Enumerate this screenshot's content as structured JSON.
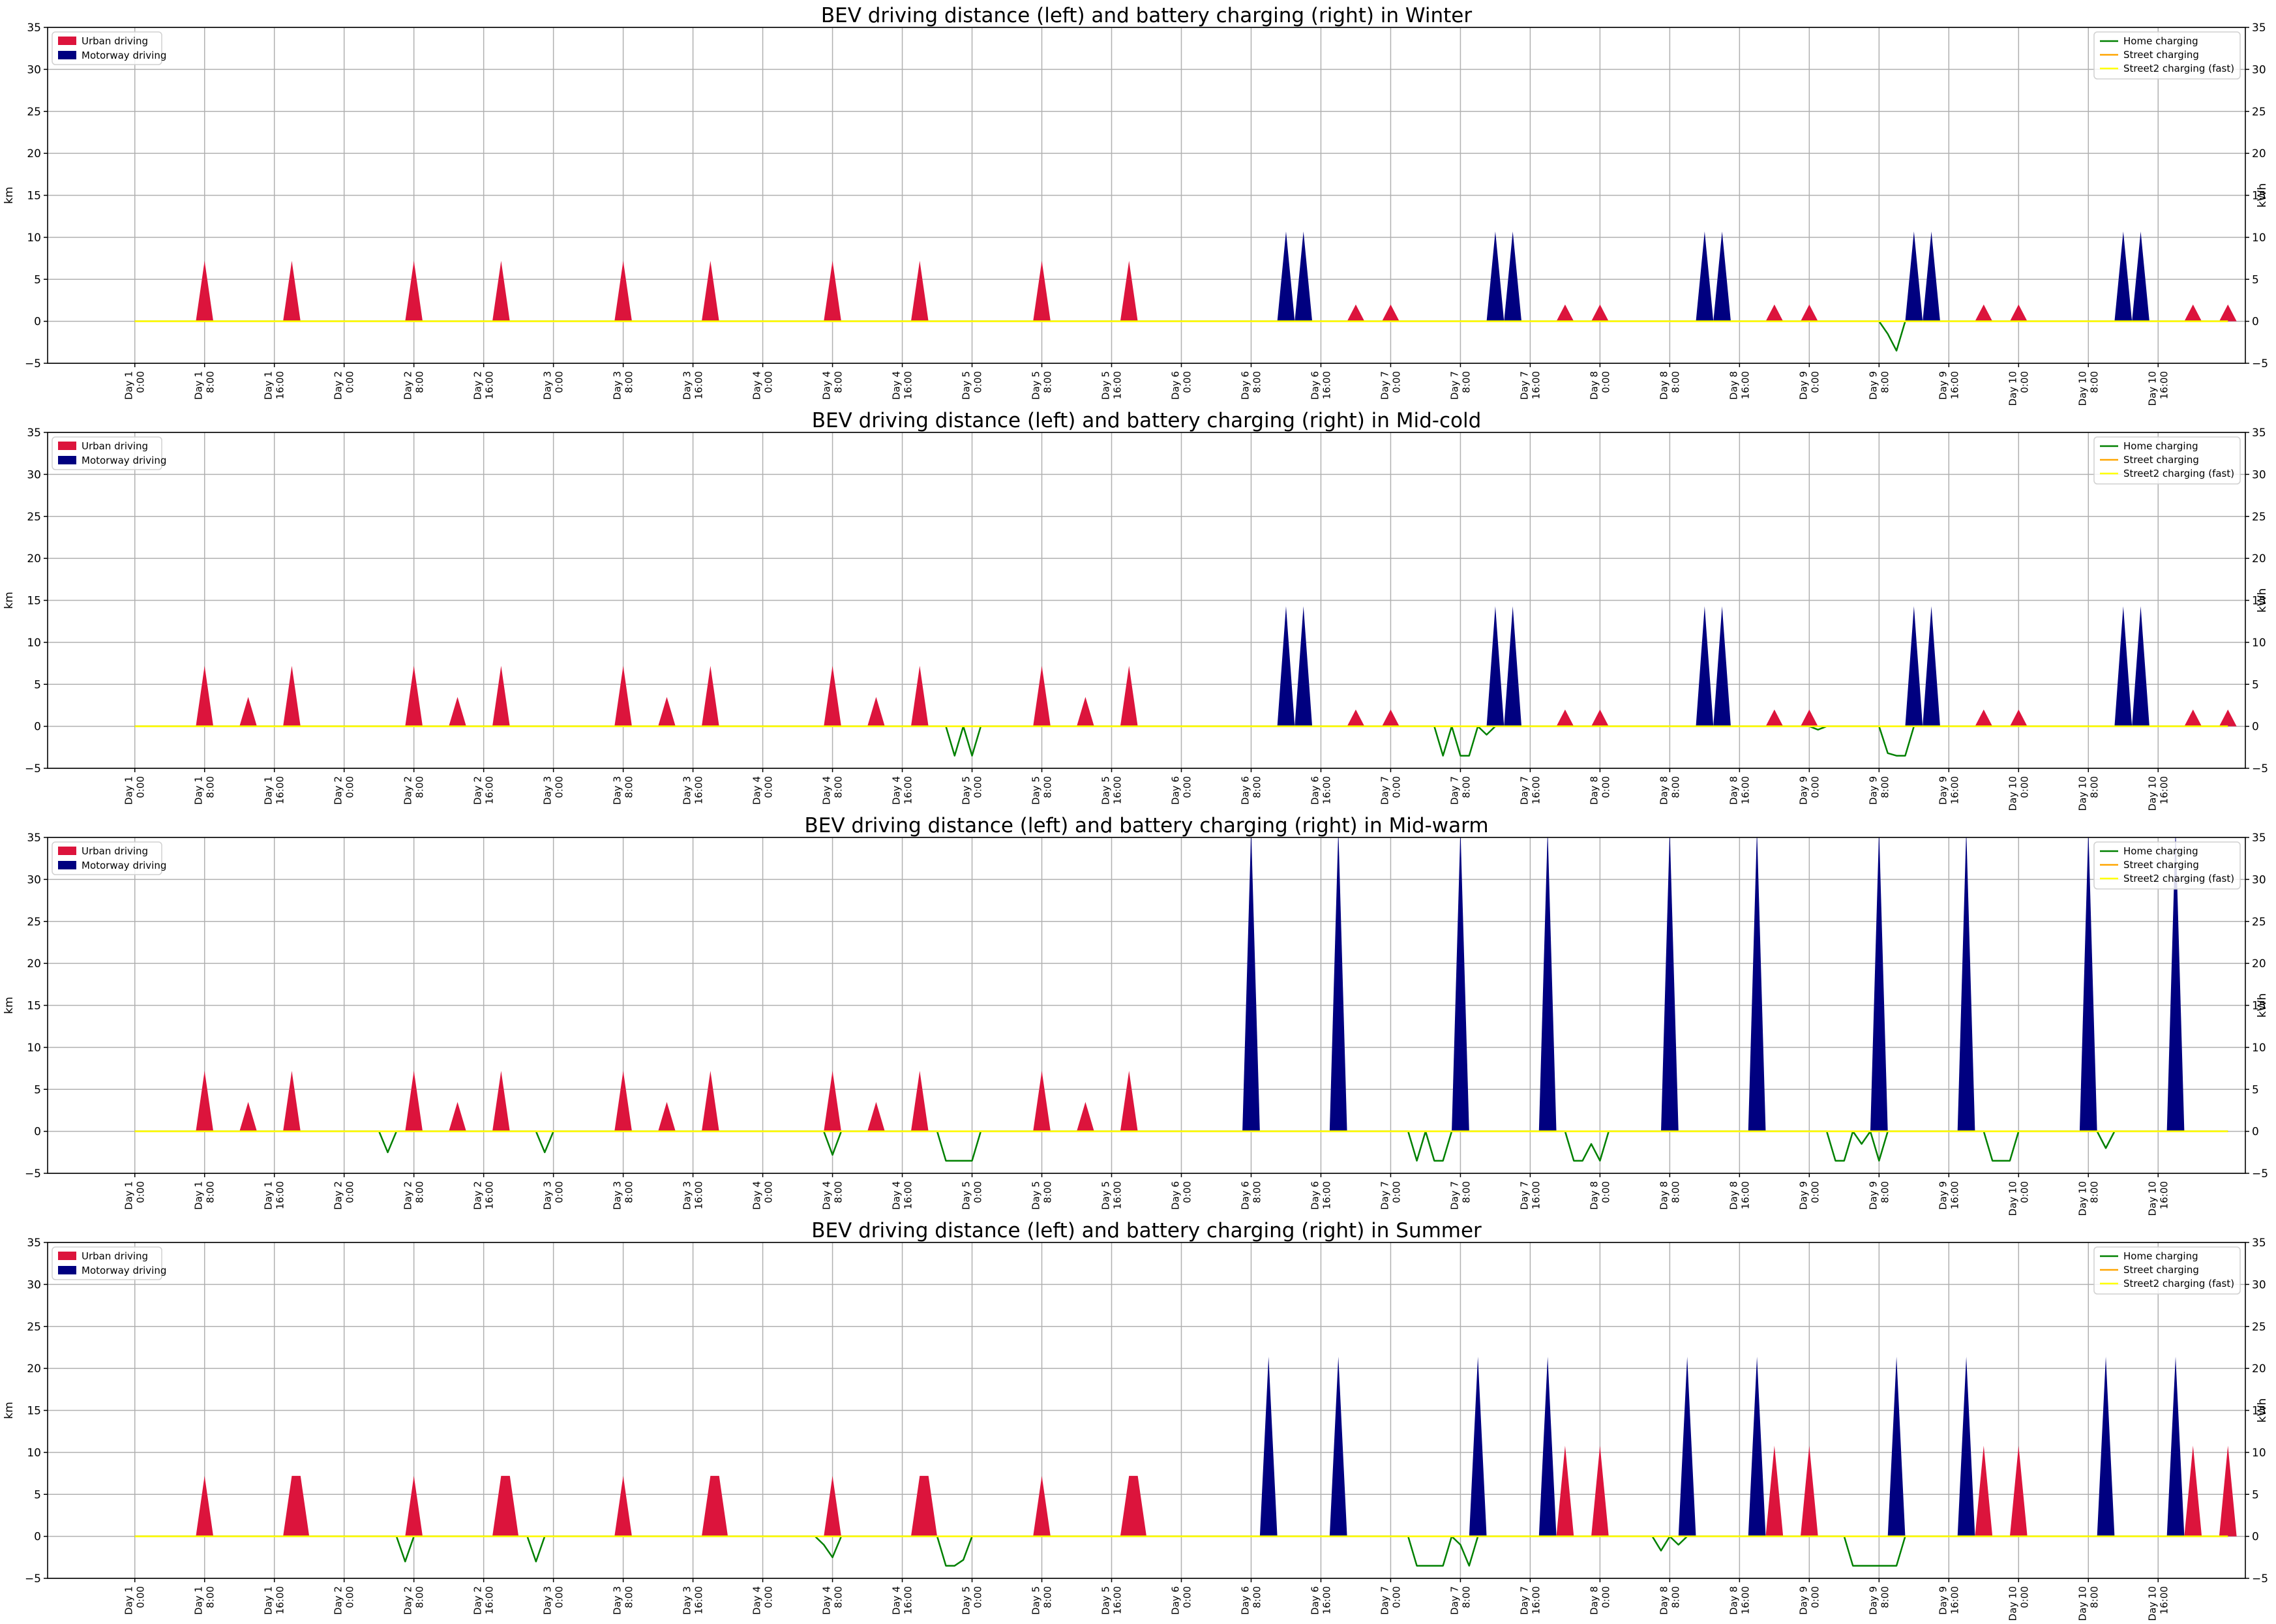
{
  "chart_data": [
    {
      "type": "area",
      "title": "BEV driving distance (left) and battery charging (right) in Winter",
      "ylabel": "km",
      "y2label": "kWh",
      "ylim": [
        -5,
        35
      ],
      "y2lim": [
        -5,
        35
      ],
      "yticks": [
        -5,
        0,
        5,
        10,
        15,
        20,
        25,
        30,
        35
      ],
      "grid": true,
      "legend_left": "top-left",
      "legend_right": "top-right",
      "urban": [
        [
          8,
          7.2
        ],
        [
          18,
          7.2
        ],
        [
          32,
          7.2
        ],
        [
          42,
          7.2
        ],
        [
          56,
          7.2
        ],
        [
          66,
          7.2
        ],
        [
          80,
          7.2
        ],
        [
          90,
          7.2
        ],
        [
          104,
          7.2
        ],
        [
          114,
          7.2
        ],
        [
          140,
          2
        ],
        [
          144,
          2
        ],
        [
          164,
          2
        ],
        [
          168,
          2
        ],
        [
          188,
          2
        ],
        [
          192,
          2
        ],
        [
          212,
          2
        ],
        [
          216,
          2
        ],
        [
          236,
          2
        ],
        [
          240,
          2
        ]
      ],
      "motorway": [
        [
          132,
          10.7
        ],
        [
          134,
          10.7
        ],
        [
          156,
          10.7
        ],
        [
          158,
          10.7
        ],
        [
          180,
          10.7
        ],
        [
          182,
          10.7
        ],
        [
          204,
          10.7
        ],
        [
          206,
          10.7
        ],
        [
          228,
          10.7
        ],
        [
          230,
          10.7
        ]
      ],
      "home": [
        [
          0,
          0
        ],
        [
          200,
          0
        ],
        [
          201,
          -1.5
        ],
        [
          202,
          -3.5
        ],
        [
          203,
          0
        ],
        [
          240,
          0
        ]
      ],
      "street": [
        [
          0,
          0
        ],
        [
          240,
          0
        ]
      ],
      "street2": [
        [
          0,
          0
        ],
        [
          240,
          0
        ]
      ]
    },
    {
      "type": "area",
      "title": "BEV driving distance (left) and battery charging (right) in Mid-cold",
      "ylabel": "km",
      "y2label": "kWh",
      "ylim": [
        -5,
        35
      ],
      "y2lim": [
        -5,
        35
      ],
      "yticks": [
        -5,
        0,
        5,
        10,
        15,
        20,
        25,
        30,
        35
      ],
      "grid": true,
      "legend_left": "top-left",
      "legend_right": "top-right",
      "urban": [
        [
          8,
          7.2
        ],
        [
          13,
          3.5
        ],
        [
          18,
          7.2
        ],
        [
          32,
          7.2
        ],
        [
          37,
          3.5
        ],
        [
          42,
          7.2
        ],
        [
          56,
          7.2
        ],
        [
          61,
          3.5
        ],
        [
          66,
          7.2
        ],
        [
          80,
          7.2
        ],
        [
          85,
          3.5
        ],
        [
          90,
          7.2
        ],
        [
          104,
          7.2
        ],
        [
          109,
          3.5
        ],
        [
          114,
          7.2
        ],
        [
          140,
          2
        ],
        [
          144,
          2
        ],
        [
          164,
          2
        ],
        [
          168,
          2
        ],
        [
          188,
          2
        ],
        [
          192,
          2
        ],
        [
          212,
          2
        ],
        [
          216,
          2
        ],
        [
          236,
          2
        ],
        [
          240,
          2
        ]
      ],
      "motorway": [
        [
          132,
          14.3
        ],
        [
          134,
          14.3
        ],
        [
          156,
          14.3
        ],
        [
          158,
          14.3
        ],
        [
          180,
          14.3
        ],
        [
          182,
          14.3
        ],
        [
          204,
          14.3
        ],
        [
          206,
          14.3
        ],
        [
          228,
          14.3
        ],
        [
          230,
          14.3
        ]
      ],
      "home": [
        [
          0,
          0
        ],
        [
          93,
          0
        ],
        [
          94,
          -3.5
        ],
        [
          95,
          0
        ],
        [
          96,
          -3.5
        ],
        [
          97,
          0
        ],
        [
          149,
          0
        ],
        [
          150,
          -3.5
        ],
        [
          151,
          0
        ],
        [
          152,
          -3.5
        ],
        [
          153,
          -3.5
        ],
        [
          154,
          0
        ],
        [
          155,
          -1
        ],
        [
          156,
          0
        ],
        [
          192,
          0
        ],
        [
          193,
          -0.4
        ],
        [
          194,
          0
        ],
        [
          200,
          0
        ],
        [
          201,
          -3.2
        ],
        [
          202,
          -3.5
        ],
        [
          203,
          -3.5
        ],
        [
          204,
          0
        ],
        [
          240,
          0
        ]
      ],
      "street": [
        [
          0,
          0
        ],
        [
          240,
          0
        ]
      ],
      "street2": [
        [
          0,
          0
        ],
        [
          240,
          0
        ]
      ]
    },
    {
      "type": "area",
      "title": "BEV driving distance (left) and battery charging (right) in Mid-warm",
      "ylabel": "km",
      "y2label": "kWh",
      "ylim": [
        -5,
        35
      ],
      "y2lim": [
        -5,
        35
      ],
      "yticks": [
        -5,
        0,
        5,
        10,
        15,
        20,
        25,
        30,
        35
      ],
      "grid": true,
      "legend_left": "top-left",
      "legend_right": "top-right",
      "urban": [
        [
          8,
          7.2
        ],
        [
          13,
          3.5
        ],
        [
          18,
          7.2
        ],
        [
          32,
          7.2
        ],
        [
          37,
          3.5
        ],
        [
          42,
          7.2
        ],
        [
          56,
          7.2
        ],
        [
          61,
          3.5
        ],
        [
          66,
          7.2
        ],
        [
          80,
          7.2
        ],
        [
          85,
          3.5
        ],
        [
          90,
          7.2
        ],
        [
          104,
          7.2
        ],
        [
          109,
          3.5
        ],
        [
          114,
          7.2
        ]
      ],
      "motorway": [
        [
          128,
          36
        ],
        [
          138,
          36
        ],
        [
          152,
          36
        ],
        [
          162,
          36
        ],
        [
          176,
          36
        ],
        [
          186,
          36
        ],
        [
          200,
          36
        ],
        [
          210,
          36
        ],
        [
          224,
          36
        ],
        [
          234,
          36
        ]
      ],
      "home": [
        [
          0,
          0
        ],
        [
          28,
          0
        ],
        [
          29,
          -2.5
        ],
        [
          30,
          0
        ],
        [
          46,
          0
        ],
        [
          47,
          -2.5
        ],
        [
          48,
          0
        ],
        [
          79,
          0
        ],
        [
          80,
          -2.8
        ],
        [
          81,
          0
        ],
        [
          92,
          0
        ],
        [
          93,
          -3.5
        ],
        [
          96,
          -3.5
        ],
        [
          97,
          0
        ],
        [
          146,
          0
        ],
        [
          147,
          -3.5
        ],
        [
          148,
          0
        ],
        [
          149,
          -3.5
        ],
        [
          150,
          -3.5
        ],
        [
          151,
          0
        ],
        [
          164,
          0
        ],
        [
          165,
          -3.5
        ],
        [
          166,
          -3.5
        ],
        [
          167,
          -1.5
        ],
        [
          168,
          -3.5
        ],
        [
          169,
          0
        ],
        [
          194,
          0
        ],
        [
          195,
          -3.5
        ],
        [
          196,
          -3.5
        ],
        [
          197,
          0
        ],
        [
          198,
          -1.5
        ],
        [
          199,
          0
        ],
        [
          200,
          -3.5
        ],
        [
          201,
          0
        ],
        [
          212,
          0
        ],
        [
          213,
          -3.5
        ],
        [
          215,
          -3.5
        ],
        [
          216,
          0
        ],
        [
          225,
          0
        ],
        [
          226,
          -2
        ],
        [
          227,
          0
        ],
        [
          240,
          0
        ]
      ],
      "street": [
        [
          0,
          0
        ],
        [
          240,
          0
        ]
      ],
      "street2": [
        [
          0,
          0
        ],
        [
          240,
          0
        ]
      ]
    },
    {
      "type": "area",
      "title": "BEV driving distance (left) and battery charging (right) in Summer",
      "ylabel": "km",
      "y2label": "kWh",
      "ylim": [
        -5,
        35
      ],
      "y2lim": [
        -5,
        35
      ],
      "yticks": [
        -5,
        0,
        5,
        10,
        15,
        20,
        25,
        30,
        35
      ],
      "grid": true,
      "legend_left": "top-left",
      "legend_right": "top-right",
      "urban": [
        [
          8,
          7.2
        ],
        [
          18,
          7.2
        ],
        [
          19,
          7.2
        ],
        [
          32,
          7.2
        ],
        [
          42,
          7.2
        ],
        [
          43,
          7.2
        ],
        [
          56,
          7.2
        ],
        [
          66,
          7.2
        ],
        [
          67,
          7.2
        ],
        [
          80,
          7.2
        ],
        [
          90,
          7.2
        ],
        [
          91,
          7.2
        ],
        [
          104,
          7.2
        ],
        [
          114,
          7.2
        ],
        [
          115,
          7.2
        ],
        [
          164,
          10.8
        ],
        [
          168,
          10.8
        ],
        [
          188,
          10.8
        ],
        [
          192,
          10.8
        ],
        [
          212,
          10.8
        ],
        [
          216,
          10.8
        ],
        [
          236,
          10.8
        ],
        [
          240,
          10.8
        ]
      ],
      "motorway": [
        [
          130,
          21.4
        ],
        [
          138,
          21.4
        ],
        [
          154,
          21.4
        ],
        [
          162,
          21.4
        ],
        [
          178,
          21.4
        ],
        [
          186,
          21.4
        ],
        [
          202,
          21.4
        ],
        [
          210,
          21.4
        ],
        [
          226,
          21.4
        ],
        [
          234,
          21.4
        ]
      ],
      "home": [
        [
          0,
          0
        ],
        [
          30,
          0
        ],
        [
          31,
          -3
        ],
        [
          32,
          0
        ],
        [
          45,
          0
        ],
        [
          46,
          -3
        ],
        [
          47,
          0
        ],
        [
          78,
          0
        ],
        [
          79,
          -1
        ],
        [
          80,
          -2.5
        ],
        [
          81,
          0
        ],
        [
          92,
          0
        ],
        [
          93,
          -3.5
        ],
        [
          94,
          -3.5
        ],
        [
          95,
          -2.8
        ],
        [
          96,
          0
        ],
        [
          146,
          0
        ],
        [
          147,
          -3.5
        ],
        [
          150,
          -3.5
        ],
        [
          151,
          0
        ],
        [
          152,
          -1
        ],
        [
          153,
          -3.5
        ],
        [
          154,
          0
        ],
        [
          174,
          0
        ],
        [
          175,
          -1.7
        ],
        [
          176,
          0
        ],
        [
          177,
          -1
        ],
        [
          178,
          0
        ],
        [
          196,
          0
        ],
        [
          197,
          -3.5
        ],
        [
          202,
          -3.5
        ],
        [
          203,
          0
        ],
        [
          240,
          0
        ]
      ],
      "street": [
        [
          0,
          0
        ],
        [
          240,
          0
        ]
      ],
      "street2": [
        [
          0,
          0
        ],
        [
          240,
          0
        ]
      ]
    }
  ],
  "xticks": [
    [
      "Day 1",
      "0:00"
    ],
    [
      "Day 1",
      "8:00"
    ],
    [
      "Day 1",
      "16:00"
    ],
    [
      "Day 2",
      "0:00"
    ],
    [
      "Day 2",
      "8:00"
    ],
    [
      "Day 2",
      "16:00"
    ],
    [
      "Day 3",
      "0:00"
    ],
    [
      "Day 3",
      "8:00"
    ],
    [
      "Day 3",
      "16:00"
    ],
    [
      "Day 4",
      "0:00"
    ],
    [
      "Day 4",
      "8:00"
    ],
    [
      "Day 4",
      "16:00"
    ],
    [
      "Day 5",
      "0:00"
    ],
    [
      "Day 5",
      "8:00"
    ],
    [
      "Day 5",
      "16:00"
    ],
    [
      "Day 6",
      "0:00"
    ],
    [
      "Day 6",
      "8:00"
    ],
    [
      "Day 6",
      "16:00"
    ],
    [
      "Day 7",
      "0:00"
    ],
    [
      "Day 7",
      "8:00"
    ],
    [
      "Day 7",
      "16:00"
    ],
    [
      "Day 8",
      "0:00"
    ],
    [
      "Day 8",
      "8:00"
    ],
    [
      "Day 8",
      "16:00"
    ],
    [
      "Day 9",
      "0:00"
    ],
    [
      "Day 9",
      "8:00"
    ],
    [
      "Day 9",
      "16:00"
    ],
    [
      "Day 10",
      "0:00"
    ],
    [
      "Day 10",
      "8:00"
    ],
    [
      "Day 10",
      "16:00"
    ]
  ],
  "legend": {
    "urban": "Urban driving",
    "motorway": "Motorway driving",
    "home": "Home charging",
    "street": "Street charging",
    "street2": "Street2 charging (fast)"
  },
  "colors": {
    "urban": "#dc143c",
    "motorway": "#000080",
    "home": "#008000",
    "street": "#ffa500",
    "street2": "#ffff00",
    "grid": "#b0b0b0",
    "axis": "#000000"
  }
}
